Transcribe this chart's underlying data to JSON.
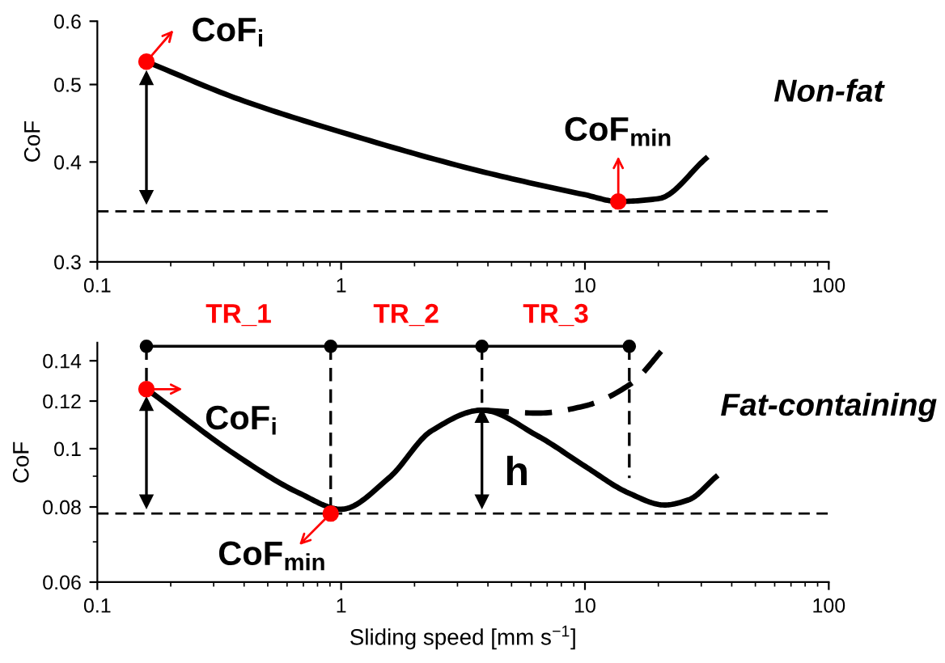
{
  "chart_data": [
    {
      "type": "line",
      "ylabel": "CoF",
      "log": "xy",
      "xlim": [
        0.1,
        100
      ],
      "ylim": [
        0.3,
        0.6
      ],
      "xticks": [
        {
          "value": 0.1,
          "label": "0.1"
        },
        {
          "value": 1,
          "label": "1"
        },
        {
          "value": 10,
          "label": "10"
        },
        {
          "value": 100,
          "label": "100"
        }
      ],
      "yticks": [
        0.3,
        0.4,
        0.5,
        0.6
      ],
      "grid": false,
      "series": [
        {
          "type": "line",
          "color": "#000000",
          "line_style": "solid",
          "x": [
            0.159,
            0.383,
            1.0,
            3.67,
            10,
            13.7,
            20.1,
            31.3
          ],
          "values": [
            0.534,
            0.479,
            0.436,
            0.39,
            0.364,
            0.357,
            0.36,
            0.404
          ]
        },
        {
          "type": "line",
          "color": "#000000",
          "line_style": "solid",
          "marker": "triangle",
          "x": [
            0.159,
            0.159
          ],
          "values": [
            0.509,
            0.362
          ]
        },
        {
          "type": "scatter",
          "color": "#ff0000",
          "marker": "circle",
          "x": [
            0.159,
            13.7
          ],
          "values": [
            0.534,
            0.357
          ]
        }
      ],
      "ref_lines": [
        {
          "axis": "y",
          "value": 0.347,
          "color": "#000000",
          "line_style": "dashed"
        }
      ],
      "annotations": [
        {
          "text": "CoF$_{i}$",
          "x": 0.159,
          "y": 0.534
        },
        {
          "text": "CoF$_{min}$",
          "x": 13.7,
          "y": 0.357
        },
        "Non-fat"
      ]
    },
    {
      "type": "line",
      "ylabel": "CoF",
      "xlabel": "Sliding speed [mm s$^{−1}$]",
      "log": "xy",
      "xlim": [
        0.1,
        100
      ],
      "ylim": [
        0.06,
        0.15
      ],
      "xticks": [
        {
          "value": 0.1,
          "label": "0.1"
        },
        {
          "value": 1,
          "label": "1"
        },
        {
          "value": 10,
          "label": "10"
        },
        {
          "value": 100,
          "label": "100"
        }
      ],
      "yticks": [
        0.06,
        0.08,
        {
          "value": 0.1,
          "label": "0.1"
        },
        0.12,
        0.14
      ],
      "grid": false,
      "series": [
        {
          "type": "line",
          "color": "#000000",
          "line_style": "solid",
          "x": [
            0.163,
            0.383,
            0.672,
            1.0,
            1.57,
            2.35,
            3.78,
            6.45,
            10,
            15.1,
            21.2,
            26.6,
            34.4
          ],
          "values": [
            0.1248,
            0.0967,
            0.0844,
            0.0793,
            0.0894,
            0.1071,
            0.1159,
            0.1048,
            0.0935,
            0.0844,
            0.0806,
            0.0822,
            0.0897
          ]
        },
        {
          "type": "line",
          "color": "#000000",
          "line_style": "dashed",
          "x": [
            3.78,
            6.45,
            10,
            15.5,
            21.2
          ],
          "values": [
            0.1159,
            0.1146,
            0.1178,
            0.1284,
            0.1473
          ]
        },
        {
          "type": "line",
          "color": "#000000",
          "line_style": "solid",
          "marker": "circle",
          "x": [
            0.159,
            0.906,
            3.78,
            15.2
          ],
          "values": [
            0.148,
            0.148,
            0.148,
            0.148
          ]
        },
        {
          "type": "line",
          "color": "#000000",
          "line_style": "dashed",
          "x": [
            0.159,
            0.159
          ],
          "values": [
            0.148,
            0.1256
          ]
        },
        {
          "type": "line",
          "color": "#000000",
          "line_style": "dashed",
          "x": [
            0.906,
            0.906
          ],
          "values": [
            0.148,
            0.0793
          ]
        },
        {
          "type": "line",
          "color": "#000000",
          "line_style": "dashed",
          "x": [
            3.78,
            3.78
          ],
          "values": [
            0.148,
            0.1159
          ]
        },
        {
          "type": "line",
          "color": "#000000",
          "line_style": "dashed",
          "x": [
            15.2,
            15.2
          ],
          "values": [
            0.148,
            0.0894
          ]
        },
        {
          "type": "line",
          "color": "#000000",
          "line_style": "solid",
          "marker": "triangle",
          "x": [
            0.159,
            0.159
          ],
          "values": [
            0.1186,
            0.0818
          ]
        },
        {
          "type": "line",
          "color": "#000000",
          "line_style": "solid",
          "marker": "triangle",
          "x": [
            3.78,
            3.78
          ],
          "values": [
            0.1133,
            0.0818
          ]
        },
        {
          "type": "scatter",
          "color": "#ff0000",
          "marker": "circle",
          "x": [
            0.159,
            0.906
          ],
          "values": [
            0.1256,
            0.078
          ]
        }
      ],
      "ref_lines": [
        {
          "axis": "y",
          "value": 0.078,
          "color": "#000000",
          "line_style": "dashed"
        }
      ],
      "annotations": [
        {
          "text": "CoF$_{i}$",
          "x": 0.159,
          "y": 0.1256
        },
        {
          "text": "CoF$_{min}$",
          "x": 0.906,
          "y": 0.078
        },
        {
          "text": "h",
          "x": 3.78,
          "y": 0.097
        },
        {
          "text": "TR_1",
          "x": 0.38,
          "y": 0.148
        },
        {
          "text": "TR_2",
          "x": 1.85,
          "y": 0.148
        },
        {
          "text": "TR_3",
          "x": 7.6,
          "y": 0.148
        },
        "Fat-containing"
      ]
    }
  ]
}
